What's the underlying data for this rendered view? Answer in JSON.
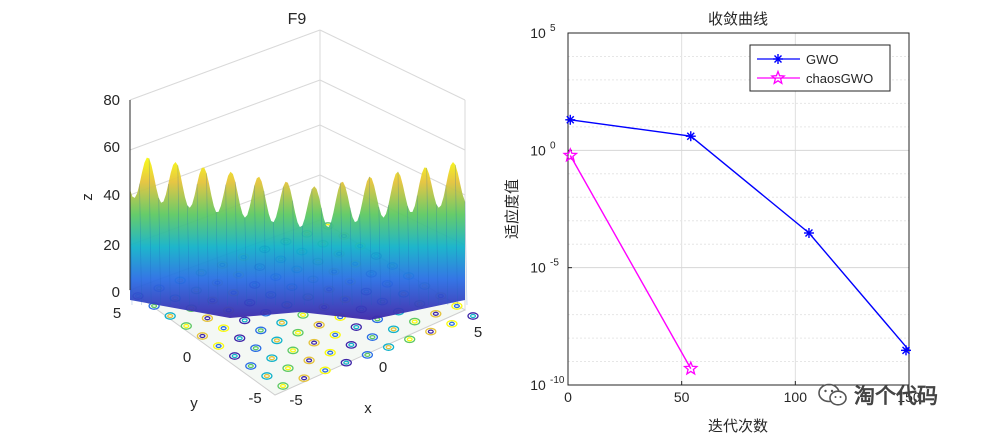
{
  "surface_chart": {
    "title": "F9",
    "z_label": "z",
    "x_label": "x",
    "y_label": "y",
    "z_ticks": [
      "0",
      "20",
      "40",
      "60",
      "80"
    ],
    "x_ticks": [
      "-5",
      "0",
      "5"
    ],
    "y_ticks": [
      "-5",
      "0",
      "5"
    ],
    "colormap": [
      "#3e26a8",
      "#2a6ee4",
      "#12b2c9",
      "#5ec962",
      "#e5c33a",
      "#f9fb0e"
    ]
  },
  "chart_data": {
    "type": "line",
    "title": "收敛曲线",
    "xlabel": "迭代次数",
    "ylabel": "适应度值",
    "xlim": [
      0,
      150
    ],
    "ylim": [
      1e-10,
      100000
    ],
    "yscale": "log",
    "grid": true,
    "legend_position": "top-right",
    "x_tick_labels": [
      "0",
      "50",
      "100",
      "150"
    ],
    "y_tick_labels": [
      {
        "base": "10",
        "exp": "5",
        "value": 100000
      },
      {
        "base": "10",
        "exp": "0",
        "value": 1
      },
      {
        "base": "10",
        "exp": "-5",
        "value": 1e-05
      },
      {
        "base": "10",
        "exp": "-10",
        "value": 1e-10
      }
    ],
    "series": [
      {
        "name": "GWO",
        "color": "#0000ff",
        "marker": "asterisk",
        "x": [
          1,
          54,
          106,
          157
        ],
        "y": [
          20,
          4,
          0.0003,
          3e-09
        ]
      },
      {
        "name": "chaosGWO",
        "color": "#ff00ff",
        "marker": "star",
        "x": [
          1,
          54
        ],
        "y": [
          0.6,
          5e-10
        ]
      }
    ]
  },
  "watermark": {
    "text": "淘个代码",
    "icon": "wechat-icon"
  }
}
